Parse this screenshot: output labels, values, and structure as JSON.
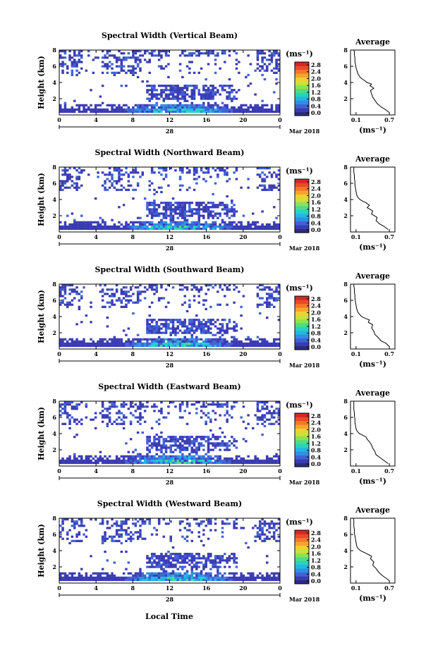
{
  "figure": {
    "xlabel": "Local Time",
    "date_label": "Mar 2018",
    "day_label": "28",
    "ylabel": "Height (km)",
    "unit_label": "(ms⁻¹)",
    "avg_title": "Average",
    "avg_xlabel": "(ms⁻¹)"
  },
  "colorbar": {
    "ticks": [
      "2.8",
      "2.4",
      "2.0",
      "1.6",
      "1.2",
      "0.8",
      "0.4",
      "0.0"
    ],
    "colors": [
      "#2b2b80",
      "#3a3bb4",
      "#3f62d6",
      "#2f8fe6",
      "#22b7e0",
      "#25d4c0",
      "#4ddc86",
      "#8fe24f",
      "#c8e23a",
      "#f0d030",
      "#f7a52a",
      "#f47828",
      "#ea4a26",
      "#d62626"
    ]
  },
  "chart_data": [
    {
      "type": "heatmap",
      "title": "Spectral Width (Vertical Beam)",
      "x_ticks": [
        "0",
        "4",
        "8",
        "12",
        "16",
        "20",
        "0"
      ],
      "y_ticks": [
        "2",
        "4",
        "6",
        "8"
      ],
      "xlim": [
        0,
        24
      ],
      "ylim": [
        0,
        8
      ],
      "profile": {
        "type": "line",
        "x_ticks": [
          "0.1",
          "0.7"
        ],
        "y_ticks": [
          "2",
          "4",
          "6",
          "8"
        ],
        "xlim": [
          0,
          0.8
        ],
        "ylim": [
          0,
          8
        ],
        "x": [
          0.7,
          0.62,
          0.55,
          0.48,
          0.44,
          0.4,
          0.38,
          0.36,
          0.42,
          0.35,
          0.38,
          0.3,
          0.24,
          0.18,
          0.14,
          0.12,
          0.1,
          0.09,
          0.08,
          0.08,
          0.07,
          0.07,
          0.06
        ],
        "y": [
          0.3,
          0.7,
          1.0,
          1.4,
          1.8,
          2.2,
          2.6,
          3.0,
          3.3,
          3.6,
          3.8,
          4.0,
          4.3,
          4.6,
          5.0,
          5.4,
          5.8,
          6.2,
          6.6,
          7.0,
          7.4,
          7.8,
          8.0
        ]
      }
    },
    {
      "type": "heatmap",
      "title": "Spectral Width (Northward Beam)",
      "x_ticks": [
        "0",
        "4",
        "8",
        "12",
        "16",
        "20",
        "0"
      ],
      "y_ticks": [
        "2",
        "4",
        "6",
        "8"
      ],
      "xlim": [
        0,
        24
      ],
      "ylim": [
        0,
        8
      ],
      "profile": {
        "type": "line",
        "x_ticks": [
          "0.1",
          "0.7"
        ],
        "y_ticks": [
          "2",
          "4",
          "6",
          "8"
        ],
        "xlim": [
          0,
          0.8
        ],
        "ylim": [
          0,
          8
        ],
        "x": [
          0.68,
          0.6,
          0.52,
          0.46,
          0.48,
          0.38,
          0.4,
          0.3,
          0.34,
          0.28,
          0.22,
          0.17,
          0.13,
          0.11,
          0.1,
          0.09,
          0.08,
          0.08,
          0.07,
          0.07,
          0.06,
          0.06,
          0.06
        ],
        "y": [
          0.3,
          0.7,
          1.0,
          1.4,
          1.8,
          2.2,
          2.6,
          3.0,
          3.3,
          3.6,
          3.8,
          4.0,
          4.3,
          4.6,
          5.0,
          5.4,
          5.8,
          6.2,
          6.6,
          7.0,
          7.4,
          7.8,
          8.0
        ]
      }
    },
    {
      "type": "heatmap",
      "title": "Spectral Width (Southward Beam)",
      "x_ticks": [
        "0",
        "4",
        "8",
        "12",
        "16",
        "20",
        "0"
      ],
      "y_ticks": [
        "2",
        "4",
        "6",
        "8"
      ],
      "xlim": [
        0,
        24
      ],
      "ylim": [
        0,
        8
      ],
      "profile": {
        "type": "line",
        "x_ticks": [
          "0.1",
          "0.7"
        ],
        "y_ticks": [
          "2",
          "4",
          "6",
          "8"
        ],
        "xlim": [
          0,
          0.8
        ],
        "ylim": [
          0,
          8
        ],
        "x": [
          0.7,
          0.64,
          0.55,
          0.5,
          0.44,
          0.42,
          0.38,
          0.4,
          0.32,
          0.34,
          0.26,
          0.2,
          0.16,
          0.13,
          0.11,
          0.1,
          0.09,
          0.08,
          0.08,
          0.07,
          0.07,
          0.06,
          0.06
        ],
        "y": [
          0.3,
          0.7,
          1.0,
          1.4,
          1.8,
          2.2,
          2.6,
          3.0,
          3.3,
          3.6,
          3.8,
          4.0,
          4.3,
          4.6,
          5.0,
          5.4,
          5.8,
          6.2,
          6.6,
          7.0,
          7.4,
          7.8,
          8.0
        ]
      }
    },
    {
      "type": "heatmap",
      "title": "Spectral Width (Eastward Beam)",
      "x_ticks": [
        "0",
        "4",
        "8",
        "12",
        "16",
        "20",
        "0"
      ],
      "y_ticks": [
        "2",
        "4",
        "6",
        "8"
      ],
      "xlim": [
        0,
        24
      ],
      "ylim": [
        0,
        8
      ],
      "profile": {
        "type": "line",
        "x_ticks": [
          "0.1",
          "0.7"
        ],
        "y_ticks": [
          "2",
          "4",
          "6",
          "8"
        ],
        "xlim": [
          0,
          0.8
        ],
        "ylim": [
          0,
          8
        ],
        "x": [
          0.68,
          0.6,
          0.54,
          0.46,
          0.44,
          0.4,
          0.38,
          0.34,
          0.3,
          0.28,
          0.22,
          0.16,
          0.12,
          0.1,
          0.09,
          0.08,
          0.08,
          0.07,
          0.07,
          0.06,
          0.06,
          0.06,
          0.06
        ],
        "y": [
          0.3,
          0.7,
          1.0,
          1.4,
          1.8,
          2.2,
          2.6,
          3.0,
          3.3,
          3.6,
          3.8,
          4.0,
          4.3,
          4.6,
          5.0,
          5.4,
          5.8,
          6.2,
          6.6,
          7.0,
          7.4,
          7.8,
          8.0
        ]
      }
    },
    {
      "type": "heatmap",
      "title": "Spectral Width (Westward Beam)",
      "x_ticks": [
        "0",
        "4",
        "8",
        "12",
        "16",
        "20",
        "0"
      ],
      "y_ticks": [
        "2",
        "4",
        "6",
        "8"
      ],
      "xlim": [
        0,
        24
      ],
      "ylim": [
        0,
        8
      ],
      "profile": {
        "type": "line",
        "x_ticks": [
          "0.1",
          "0.7"
        ],
        "y_ticks": [
          "2",
          "4",
          "6",
          "8"
        ],
        "xlim": [
          0,
          0.8
        ],
        "ylim": [
          0,
          8
        ],
        "x": [
          0.7,
          0.62,
          0.56,
          0.5,
          0.46,
          0.4,
          0.42,
          0.36,
          0.38,
          0.3,
          0.24,
          0.18,
          0.13,
          0.11,
          0.1,
          0.09,
          0.08,
          0.07,
          0.07,
          0.06,
          0.06,
          0.06,
          0.05
        ],
        "y": [
          0.3,
          0.7,
          1.0,
          1.4,
          1.8,
          2.2,
          2.6,
          3.0,
          3.3,
          3.6,
          3.8,
          4.0,
          4.3,
          4.6,
          5.0,
          5.4,
          5.8,
          6.2,
          6.6,
          7.0,
          7.4,
          7.8,
          8.0
        ]
      }
    }
  ]
}
